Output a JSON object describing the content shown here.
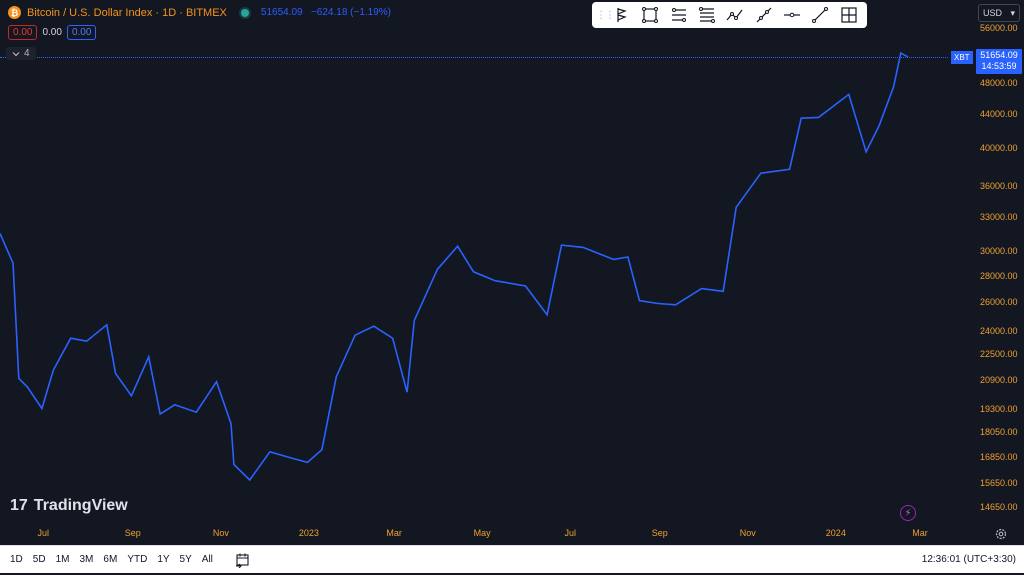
{
  "header": {
    "logo_glyph": "₿",
    "symbol_title": "Bitcoin / U.S. Dollar Index · 1D · BITMEX",
    "last_price": "51654.09",
    "change": "−624.18 (−1.19%)"
  },
  "indicators": {
    "values": [
      "0.00",
      "0.00",
      "0.00"
    ],
    "collapse_count": "4"
  },
  "toolbar": {
    "drag_handle": "⋮⋮",
    "tools": [
      "flag-marker-icon",
      "rectangle-icon",
      "parallel-channel-icon",
      "fib-retracement-icon",
      "path-icon",
      "ray-icon",
      "horizontal-line-icon",
      "trend-line-icon",
      "crosshair-frame-icon"
    ]
  },
  "currency": {
    "value": "USD",
    "chevron": "▾"
  },
  "price_axis": {
    "labels": [
      "56000.00",
      "48000.00",
      "44000.00",
      "40000.00",
      "36000.00",
      "33000.00",
      "30000.00",
      "28000.00",
      "26000.00",
      "24000.00",
      "22500.00",
      "20900.00",
      "19300.00",
      "18050.00",
      "16850.00",
      "15650.00",
      "14650.00"
    ],
    "last_tag": "XBT",
    "last_value": "51654.09",
    "countdown": "14:53:59"
  },
  "time_axis": {
    "labels": [
      "Jul",
      "Sep",
      "Nov",
      "2023",
      "Mar",
      "May",
      "Jul",
      "Sep",
      "Nov",
      "2024",
      "Mar"
    ]
  },
  "watermark": {
    "text": "TradingView",
    "logo": "17"
  },
  "bottom_bar": {
    "ranges": [
      "1D",
      "5D",
      "1M",
      "3M",
      "6M",
      "YTD",
      "1Y",
      "5Y",
      "All"
    ],
    "clock": "12:36:01 (UTC+3:30)"
  },
  "chart_data": {
    "type": "line",
    "title": "",
    "xlabel": "",
    "ylabel": "",
    "scale": "log",
    "series": [
      {
        "points": [
          [
            "2022-06-01",
            31500
          ],
          [
            "2022-06-10",
            29000
          ],
          [
            "2022-06-14",
            21000
          ],
          [
            "2022-06-20",
            20500
          ],
          [
            "2022-06-30",
            19300
          ],
          [
            "2022-07-08",
            21500
          ],
          [
            "2022-07-20",
            23500
          ],
          [
            "2022-07-31",
            23300
          ],
          [
            "2022-08-14",
            24400
          ],
          [
            "2022-08-20",
            21300
          ],
          [
            "2022-08-31",
            20000
          ],
          [
            "2022-09-12",
            22300
          ],
          [
            "2022-09-20",
            19000
          ],
          [
            "2022-09-30",
            19500
          ],
          [
            "2022-10-15",
            19100
          ],
          [
            "2022-10-29",
            20800
          ],
          [
            "2022-11-08",
            18500
          ],
          [
            "2022-11-10",
            16500
          ],
          [
            "2022-11-21",
            15800
          ],
          [
            "2022-12-05",
            17100
          ],
          [
            "2022-12-20",
            16800
          ],
          [
            "2022-12-31",
            16600
          ],
          [
            "2023-01-10",
            17200
          ],
          [
            "2023-01-20",
            21100
          ],
          [
            "2023-02-02",
            23700
          ],
          [
            "2023-02-15",
            24300
          ],
          [
            "2023-02-28",
            23500
          ],
          [
            "2023-03-10",
            20200
          ],
          [
            "2023-03-15",
            24700
          ],
          [
            "2023-03-31",
            28500
          ],
          [
            "2023-04-14",
            30400
          ],
          [
            "2023-04-25",
            28300
          ],
          [
            "2023-05-10",
            27600
          ],
          [
            "2023-05-31",
            27200
          ],
          [
            "2023-06-15",
            25100
          ],
          [
            "2023-06-25",
            30500
          ],
          [
            "2023-07-10",
            30300
          ],
          [
            "2023-07-31",
            29300
          ],
          [
            "2023-08-10",
            29500
          ],
          [
            "2023-08-18",
            26100
          ],
          [
            "2023-08-31",
            25900
          ],
          [
            "2023-09-12",
            25800
          ],
          [
            "2023-09-30",
            27000
          ],
          [
            "2023-10-15",
            26800
          ],
          [
            "2023-10-24",
            33900
          ],
          [
            "2023-11-10",
            37300
          ],
          [
            "2023-11-30",
            37700
          ],
          [
            "2023-12-08",
            43500
          ],
          [
            "2023-12-20",
            43600
          ],
          [
            "2024-01-10",
            46500
          ],
          [
            "2024-01-22",
            39600
          ],
          [
            "2024-01-31",
            42600
          ],
          [
            "2024-02-10",
            47500
          ],
          [
            "2024-02-15",
            52200
          ],
          [
            "2024-02-20",
            51654
          ]
        ]
      }
    ]
  }
}
